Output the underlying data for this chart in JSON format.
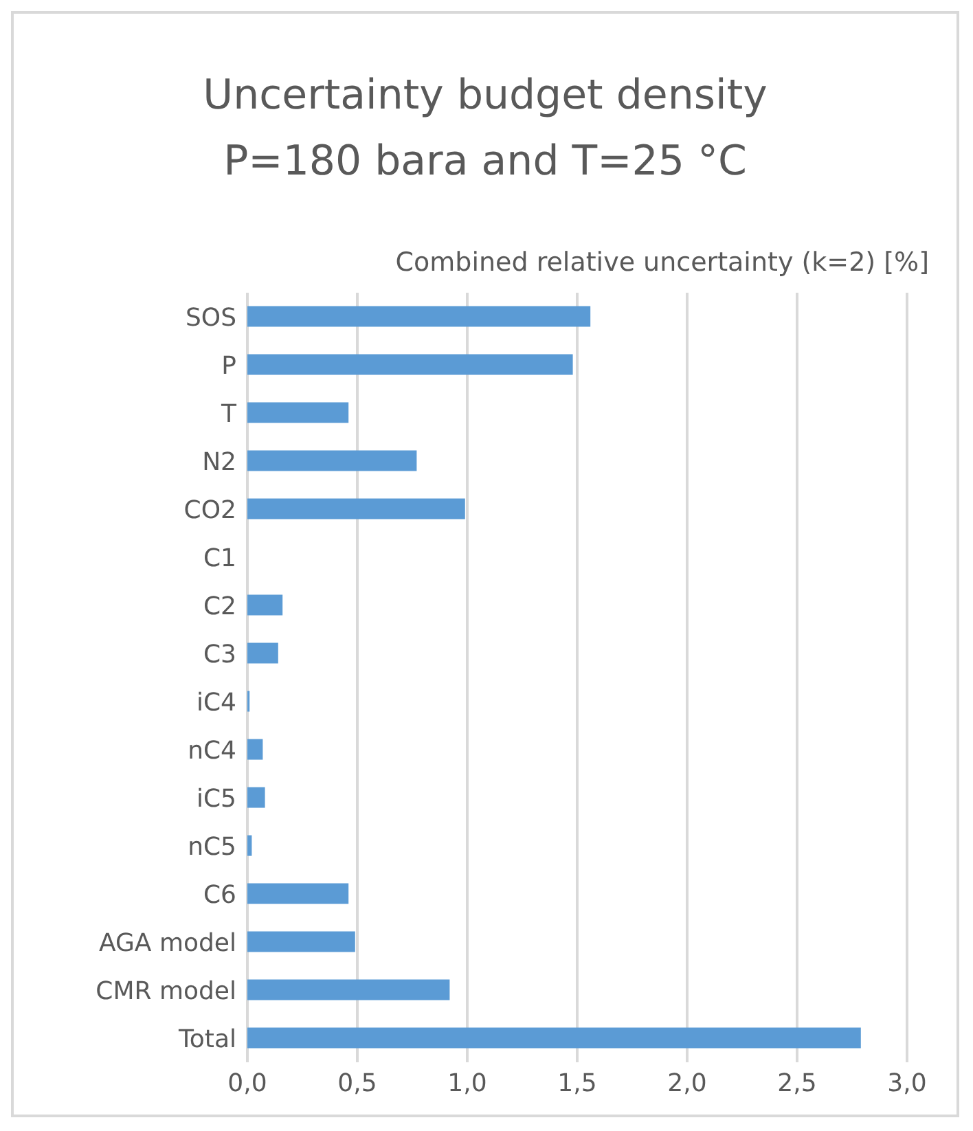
{
  "chart_data": {
    "type": "bar",
    "orientation": "horizontal",
    "title": "Uncertainty budget density\nP=180 bara and T=25 °C",
    "xlabel": "Combined relative uncertainty (k=2) [%]",
    "categories": [
      "SOS",
      "P",
      "T",
      "N2",
      "CO2",
      "C1",
      "C2",
      "C3",
      "iC4",
      "nC4",
      "iC5",
      "nC5",
      "C6",
      "AGA model",
      "CMR model",
      "Total"
    ],
    "values": [
      1.56,
      1.48,
      0.46,
      0.77,
      0.99,
      0,
      0.16,
      0.14,
      0.01,
      0.07,
      0.08,
      0.02,
      0.46,
      0.49,
      0.92,
      2.79
    ],
    "color": "#5b9bd5",
    "xlim": [
      0,
      3
    ],
    "xticks": [
      {
        "value": 0,
        "label": "0,0"
      },
      {
        "value": 0.5,
        "label": "0,5"
      },
      {
        "value": 1,
        "label": "1,0"
      },
      {
        "value": 1.5,
        "label": "1,5"
      },
      {
        "value": 2,
        "label": "2,0"
      },
      {
        "value": 2.5,
        "label": "2,5"
      },
      {
        "value": 3,
        "label": "3,0"
      }
    ],
    "grid": "x",
    "legend": false
  }
}
